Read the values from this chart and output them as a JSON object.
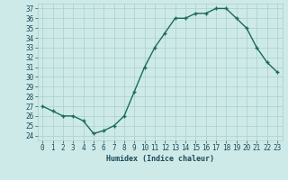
{
  "x": [
    0,
    1,
    2,
    3,
    4,
    5,
    6,
    7,
    8,
    9,
    10,
    11,
    12,
    13,
    14,
    15,
    16,
    17,
    18,
    19,
    20,
    21,
    22,
    23
  ],
  "y": [
    27.0,
    26.5,
    26.0,
    26.0,
    25.5,
    24.2,
    24.5,
    25.0,
    26.0,
    28.5,
    31.0,
    33.0,
    34.5,
    36.0,
    36.0,
    36.5,
    36.5,
    37.0,
    37.0,
    36.0,
    35.0,
    33.0,
    31.5,
    30.5
  ],
  "line_color": "#1a6b5a",
  "marker_color": "#1a6b5a",
  "bg_color": "#ceeae8",
  "grid_color": "#aacfcc",
  "xlabel": "Humidex (Indice chaleur)",
  "ylabel": "",
  "title": "",
  "xlim": [
    -0.5,
    23.5
  ],
  "ylim": [
    23.5,
    37.5
  ],
  "yticks": [
    24,
    25,
    26,
    27,
    28,
    29,
    30,
    31,
    32,
    33,
    34,
    35,
    36,
    37
  ],
  "xticks": [
    0,
    1,
    2,
    3,
    4,
    5,
    6,
    7,
    8,
    9,
    10,
    11,
    12,
    13,
    14,
    15,
    16,
    17,
    18,
    19,
    20,
    21,
    22,
    23
  ],
  "xtick_labels": [
    "0",
    "1",
    "2",
    "3",
    "4",
    "5",
    "6",
    "7",
    "8",
    "9",
    "10",
    "11",
    "12",
    "13",
    "14",
    "15",
    "16",
    "17",
    "18",
    "19",
    "20",
    "21",
    "22",
    "23"
  ],
  "font_color": "#1a4a5a",
  "label_fontsize": 6.0,
  "tick_fontsize": 5.5
}
